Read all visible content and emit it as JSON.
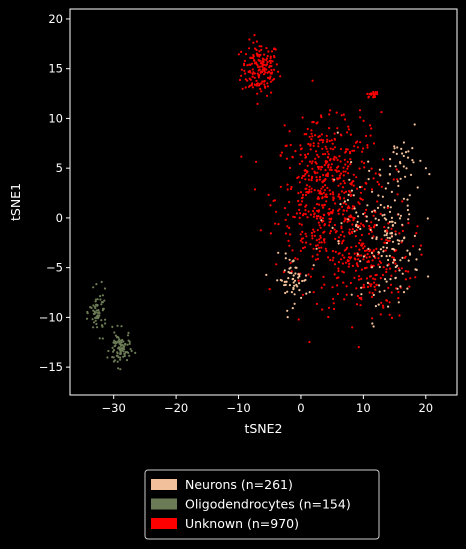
{
  "chart_data": {
    "type": "scatter",
    "xlabel": "tSNE2",
    "ylabel": "tSNE1",
    "xlim": [
      -37,
      25
    ],
    "ylim": [
      -17.8,
      21
    ],
    "xticks": [
      -30,
      -20,
      -10,
      0,
      10,
      20
    ],
    "yticks": [
      -15,
      -10,
      -5,
      0,
      5,
      10,
      15,
      20
    ],
    "background": "#000000",
    "axis_color": "#ffffff",
    "legend_position": "below plot, centered",
    "series": [
      {
        "name": "Neurons (n=261)",
        "color": "#f2c09b",
        "clusters": [
          {
            "cx": -1.5,
            "cy": -6.2,
            "sx": 1.8,
            "sy": 1.6,
            "n": 60
          },
          {
            "cx": 14.5,
            "cy": -3.0,
            "sx": 3.0,
            "sy": 3.6,
            "n": 120
          },
          {
            "cx": 10.0,
            "cy": 1.0,
            "sx": 5.0,
            "sy": 4.5,
            "n": 50
          },
          {
            "cx": 16.5,
            "cy": 5.5,
            "sx": 2.0,
            "sy": 2.0,
            "n": 31
          }
        ]
      },
      {
        "name": "Oligodendrocytes (n=154)",
        "color": "#6b7b55",
        "clusters": [
          {
            "cx": -32.5,
            "cy": -9.5,
            "sx": 0.9,
            "sy": 1.4,
            "n": 64
          },
          {
            "cx": -29.0,
            "cy": -13.2,
            "sx": 1.1,
            "sy": 1.2,
            "n": 90
          }
        ]
      },
      {
        "name": "Unknown (n=970)",
        "color": "#ff0000",
        "clusters": [
          {
            "cx": -6.5,
            "cy": 15.0,
            "sx": 2.0,
            "sy": 1.8,
            "n": 170
          },
          {
            "cx": 3.5,
            "cy": 2.0,
            "sx": 5.0,
            "sy": 4.8,
            "n": 420
          },
          {
            "cx": 10.0,
            "cy": -4.0,
            "sx": 5.2,
            "sy": 4.2,
            "n": 260
          },
          {
            "cx": 6.0,
            "cy": 6.0,
            "sx": 5.5,
            "sy": 3.0,
            "n": 100
          },
          {
            "cx": 11.5,
            "cy": 12.4,
            "sx": 0.6,
            "sy": 0.2,
            "n": 20
          }
        ]
      }
    ]
  }
}
